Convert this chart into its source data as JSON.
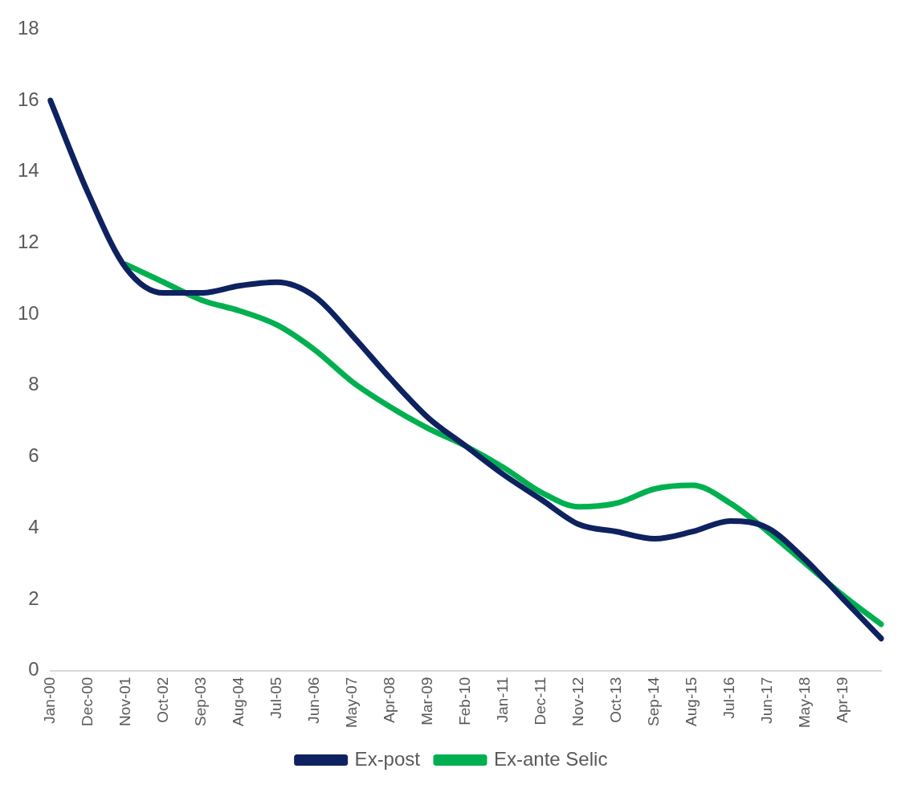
{
  "chart_data": {
    "type": "line",
    "categories": [
      "Jan-00",
      "Dec-00",
      "Nov-01",
      "Oct-02",
      "Sep-03",
      "Aug-04",
      "Jul-05",
      "Jun-06",
      "May-07",
      "Apr-08",
      "Mar-09",
      "Feb-10",
      "Jan-11",
      "Dec-11",
      "Nov-12",
      "Oct-13",
      "Sep-14",
      "Aug-15",
      "Jul-16",
      "Jun-17",
      "May-18",
      "Apr-19",
      null
    ],
    "series": [
      {
        "name": "Ex-post",
        "color": "#0e2260",
        "values": [
          16.0,
          13.4,
          11.3,
          10.6,
          10.6,
          10.8,
          10.9,
          10.5,
          9.4,
          8.2,
          7.1,
          6.3,
          5.5,
          4.8,
          4.1,
          3.9,
          3.7,
          3.9,
          4.2,
          4.0,
          3.1,
          2.0,
          0.9
        ]
      },
      {
        "name": "Ex-ante Selic",
        "color": "#00b050",
        "values": [
          null,
          null,
          11.4,
          10.9,
          10.4,
          10.1,
          9.7,
          9.0,
          8.1,
          7.4,
          6.8,
          6.3,
          5.7,
          5.0,
          4.6,
          4.7,
          5.1,
          5.2,
          4.7,
          3.9,
          3.0,
          2.1,
          1.3
        ]
      }
    ],
    "ylim": [
      0,
      18
    ],
    "yticks": [
      0,
      2,
      4,
      6,
      8,
      10,
      12,
      14,
      16,
      18
    ],
    "grid": false,
    "legend": "bottom",
    "marker": "none",
    "line_style": "solid"
  }
}
